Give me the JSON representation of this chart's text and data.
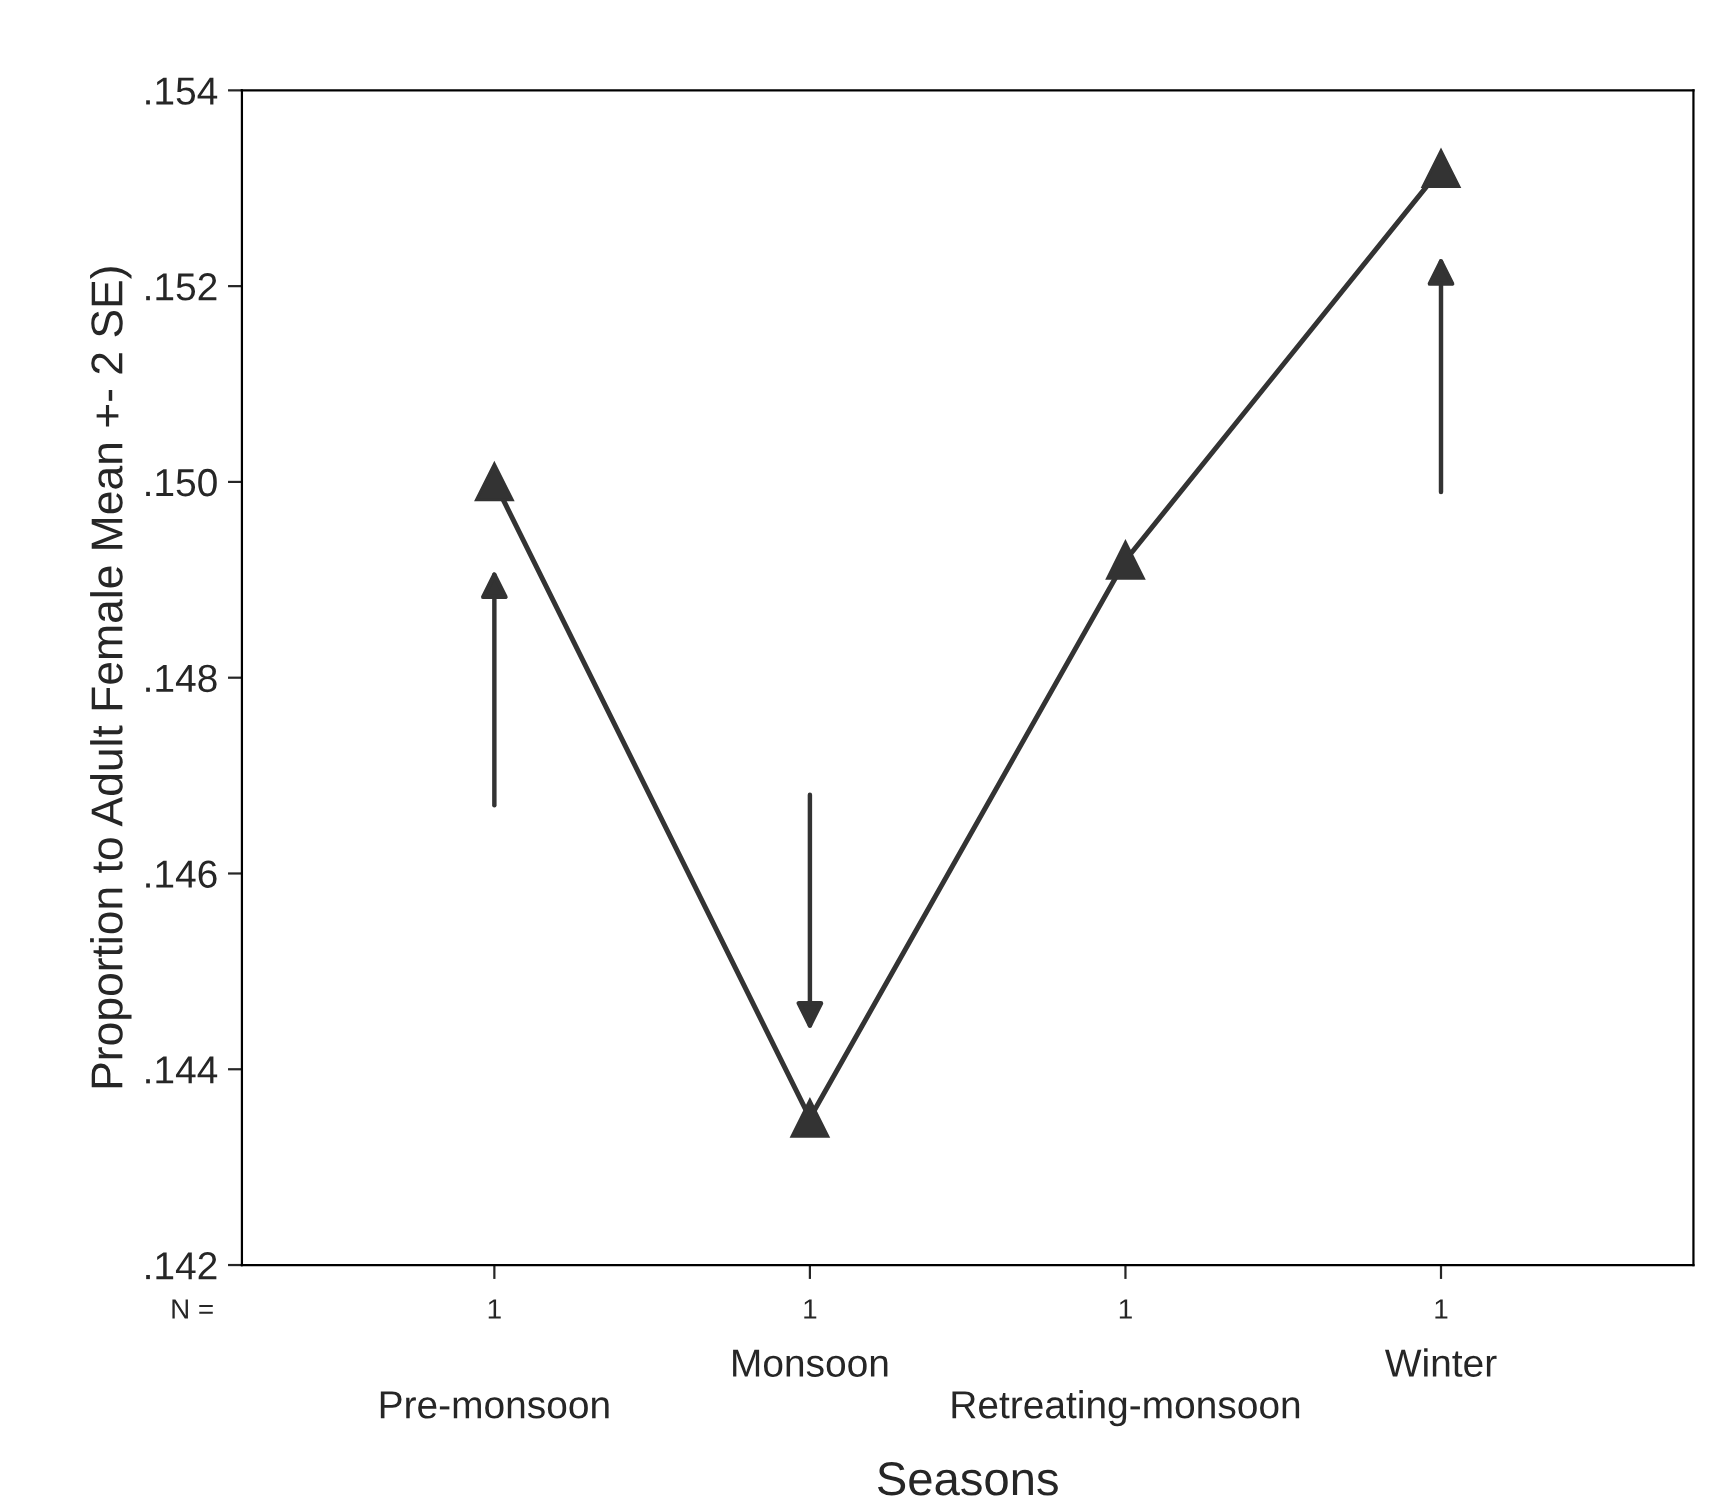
{
  "chart_data": {
    "type": "line",
    "xlabel": "Seasons",
    "ylabel": "Proportion to Adult Female Mean +- 2 SE)",
    "categories": [
      "Pre-monsoon",
      "Monsoon",
      "Retreating-monsoon",
      "Winter"
    ],
    "series": [
      {
        "color": "#333333",
        "values": [
          0.15,
          0.1435,
          0.1492,
          0.1532
        ]
      }
    ],
    "ylim": [
      0.142,
      0.154
    ],
    "yticks": [
      {
        "value": 0.142,
        "label": ".142"
      },
      {
        "value": 0.144,
        "label": ".144"
      },
      {
        "value": 0.146,
        "label": ".146"
      },
      {
        "value": 0.148,
        "label": ".148"
      },
      {
        "value": 0.15,
        "label": ".150"
      },
      {
        "value": 0.152,
        "label": ".152"
      },
      {
        "value": 0.154,
        "label": ".154"
      }
    ],
    "annotations": [
      "N =",
      "1",
      "1",
      "1",
      "1"
    ],
    "marker": "triangle",
    "line_style": "solid",
    "grid": false,
    "legend": false
  }
}
